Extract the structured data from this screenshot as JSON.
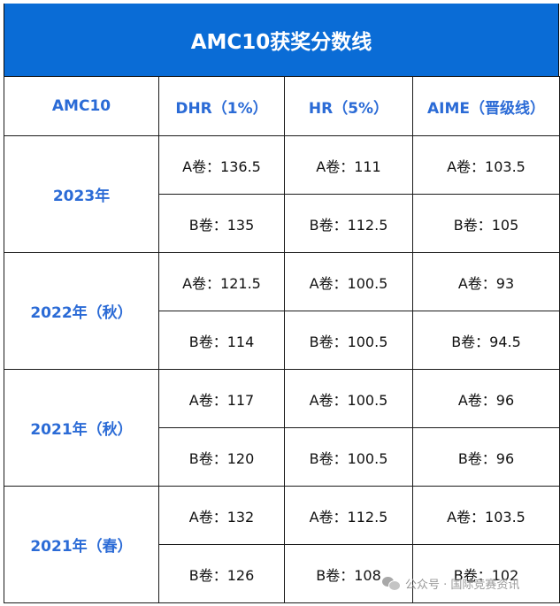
{
  "title": "AMC10获奖分数线",
  "headers": [
    "AMC10",
    "DHR（1%）",
    "HR（5%）",
    "AIME（晋级线）"
  ],
  "rows": [
    {
      "year": "2023年",
      "a": [
        "A卷：136.5",
        "A卷：111",
        "A卷：103.5"
      ],
      "b": [
        "B卷：135",
        "B卷：112.5",
        "B卷：105"
      ]
    },
    {
      "year": "2022年（秋）",
      "a": [
        "A卷：121.5",
        "A卷：100.5",
        "A卷：93"
      ],
      "b": [
        "B卷：114",
        "B卷：100.5",
        "B卷：94.5"
      ]
    },
    {
      "year": "2021年（秋）",
      "a": [
        "A卷：117",
        "A卷：100.5",
        "A卷：96"
      ],
      "b": [
        "B卷：120",
        "B卷：100.5",
        "B卷：96"
      ]
    },
    {
      "year": "2021年（春）",
      "a": [
        "A卷：132",
        "A卷：112.5",
        "A卷：103.5"
      ],
      "b": [
        "B卷：126",
        "B卷：108",
        "B卷：102"
      ]
    }
  ],
  "watermark": {
    "text": "公众号 · 国际竞赛资讯",
    "icon": "wechat-icon"
  },
  "colors": {
    "title_bg": "#0a6cd6",
    "header_text": "#2b6bd6"
  }
}
